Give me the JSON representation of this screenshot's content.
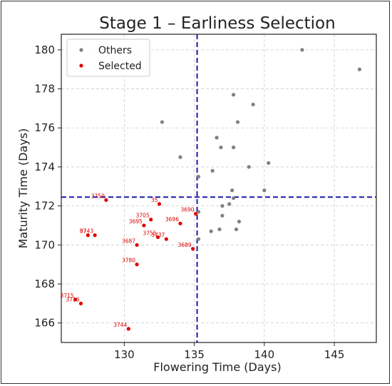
{
  "chart_data": {
    "type": "scatter",
    "title": "Stage 1 – Earliness Selection",
    "xlabel": "Flowering Time (Days)",
    "ylabel": "Maturity Time (Days)",
    "xlim": [
      125.5,
      148
    ],
    "ylim": [
      165,
      180.8
    ],
    "xticks": [
      130,
      135,
      140,
      145
    ],
    "yticks": [
      166,
      168,
      170,
      172,
      174,
      176,
      178,
      180
    ],
    "grid": true,
    "legend_position": "top-left",
    "thresholds": {
      "x": 135.2,
      "y": 172.45,
      "color": "#1a1aaa"
    },
    "colors": {
      "others": "#808080",
      "selected": "#e00000"
    },
    "series": [
      {
        "name": "Others",
        "points": [
          {
            "x": 142.7,
            "y": 180.0
          },
          {
            "x": 146.8,
            "y": 179.0
          },
          {
            "x": 137.8,
            "y": 177.7
          },
          {
            "x": 139.2,
            "y": 177.2
          },
          {
            "x": 132.7,
            "y": 176.3
          },
          {
            "x": 138.1,
            "y": 176.3
          },
          {
            "x": 136.6,
            "y": 175.5
          },
          {
            "x": 136.9,
            "y": 175.0
          },
          {
            "x": 137.8,
            "y": 175.0
          },
          {
            "x": 134.0,
            "y": 174.5
          },
          {
            "x": 140.3,
            "y": 174.2
          },
          {
            "x": 138.9,
            "y": 174.0
          },
          {
            "x": 136.3,
            "y": 173.8
          },
          {
            "x": 135.3,
            "y": 173.5
          },
          {
            "x": 137.7,
            "y": 172.8
          },
          {
            "x": 140.0,
            "y": 172.8
          },
          {
            "x": 137.8,
            "y": 172.4
          },
          {
            "x": 137.5,
            "y": 172.1
          },
          {
            "x": 137.0,
            "y": 172.0
          },
          {
            "x": 135.3,
            "y": 171.7
          },
          {
            "x": 137.0,
            "y": 171.5
          },
          {
            "x": 138.2,
            "y": 171.2
          },
          {
            "x": 138.0,
            "y": 170.8
          },
          {
            "x": 136.8,
            "y": 170.8
          },
          {
            "x": 136.2,
            "y": 170.7
          },
          {
            "x": 135.3,
            "y": 170.3
          }
        ]
      },
      {
        "name": "Selected",
        "points": [
          {
            "x": 128.7,
            "y": 172.3,
            "label": "3759"
          },
          {
            "x": 132.5,
            "y": 172.1,
            "label": "35"
          },
          {
            "x": 131.9,
            "y": 171.3,
            "label": "3705"
          },
          {
            "x": 131.4,
            "y": 171.0,
            "label": "3695"
          },
          {
            "x": 134.0,
            "y": 171.1,
            "label": "3696"
          },
          {
            "x": 135.1,
            "y": 171.6,
            "label": "3690"
          },
          {
            "x": 127.4,
            "y": 170.5,
            "label": "87"
          },
          {
            "x": 127.9,
            "y": 170.5,
            "label": "3743"
          },
          {
            "x": 132.4,
            "y": 170.4,
            "label": "3755"
          },
          {
            "x": 133.0,
            "y": 170.3,
            "label": "3737"
          },
          {
            "x": 130.9,
            "y": 170.0,
            "label": "3687"
          },
          {
            "x": 134.9,
            "y": 169.8,
            "label": "3689"
          },
          {
            "x": 130.9,
            "y": 169.0,
            "label": "3780"
          },
          {
            "x": 126.5,
            "y": 167.2,
            "label": "3715"
          },
          {
            "x": 126.9,
            "y": 167.0,
            "label": "3716"
          },
          {
            "x": 130.3,
            "y": 165.7,
            "label": "3744"
          }
        ]
      }
    ]
  }
}
